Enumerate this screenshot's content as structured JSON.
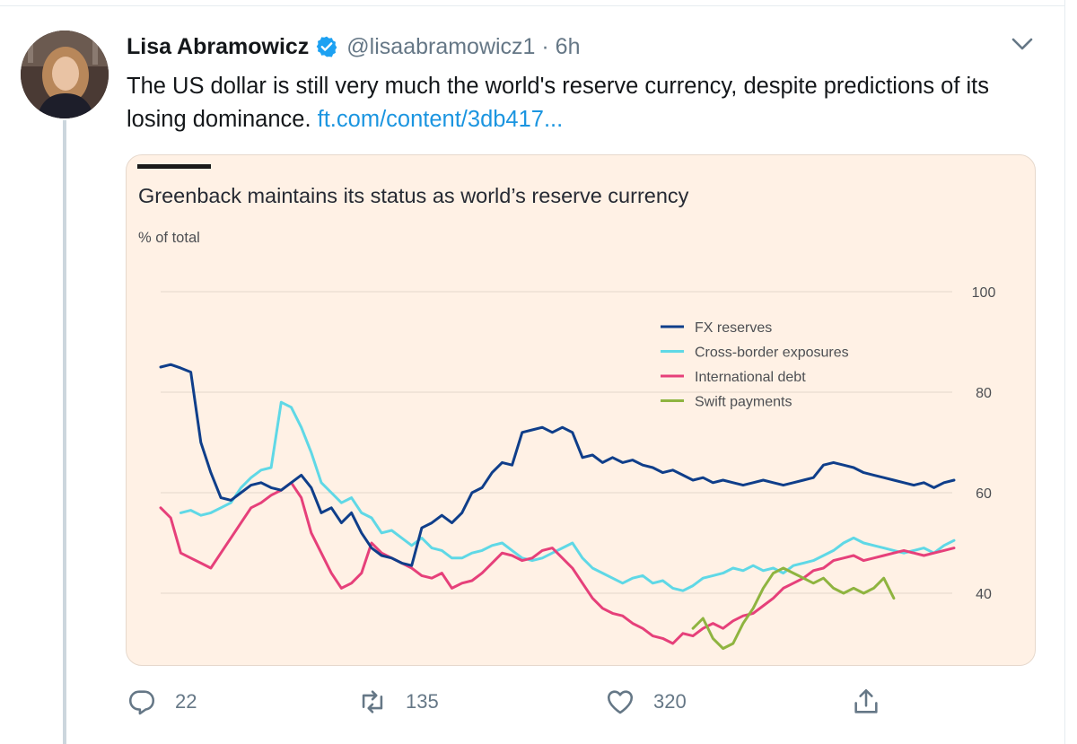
{
  "tweet": {
    "author_name": "Lisa Abramowicz",
    "handle_time": "@lisaabramowicz1 · 6h",
    "text": "The US dollar is still very much the world's reserve currency, despite predictions of its losing dominance. ",
    "link_text": "ft.com/content/3db417..."
  },
  "icons": {
    "avatar": "avatar-photo",
    "verified": "verified-badge-icon",
    "menu": "chevron-down-icon",
    "reply": "reply-icon",
    "retweet": "retweet-icon",
    "like": "heart-icon",
    "share": "share-icon"
  },
  "actions": {
    "reply_count": "22",
    "retweet_count": "135",
    "like_count": "320"
  },
  "colors": {
    "verified": "#1da1f2",
    "link": "#1b95e0",
    "card_bg": "#fff1e5"
  },
  "chart_data": {
    "type": "line",
    "title": "Greenback maintains its status as world’s reserve currency",
    "ylabel": "% of total",
    "ylim": [
      30,
      100
    ],
    "yticks": [
      40,
      60,
      80,
      100
    ],
    "legend": "top-right",
    "grid": true,
    "series": [
      {
        "name": "FX reserves",
        "color": "#0f3e8a",
        "x": [
          0,
          1,
          2,
          3,
          4,
          5,
          6,
          7,
          8,
          9,
          10,
          11,
          12,
          13,
          14,
          15,
          16,
          17,
          18,
          19,
          20,
          21,
          22,
          23,
          24,
          25,
          26,
          27,
          28,
          29,
          30,
          31,
          32,
          33,
          34,
          35,
          36,
          37,
          38,
          39,
          40,
          41,
          42,
          43,
          44,
          45,
          46,
          47,
          48,
          49,
          50,
          51,
          52,
          53,
          54,
          55,
          56,
          57,
          58,
          59,
          60,
          61,
          62,
          63,
          64,
          65,
          66,
          67,
          68,
          69,
          70,
          71,
          72,
          73,
          74,
          75,
          76,
          77,
          78,
          79
        ],
        "values": [
          85,
          85.5,
          84.8,
          84,
          70,
          64,
          59,
          58.5,
          60,
          61.5,
          62,
          61,
          60.5,
          62,
          63.5,
          61,
          56,
          57,
          54,
          56,
          52,
          49,
          47.5,
          47,
          46,
          45.5,
          53,
          54,
          55.5,
          54,
          56,
          60,
          61,
          64,
          66,
          65.5,
          72,
          72.5,
          73,
          72,
          73,
          72,
          67,
          67.5,
          66,
          67,
          66,
          66.5,
          65.5,
          65,
          64,
          64.5,
          63.5,
          62.5,
          63,
          62,
          62.5,
          62,
          61.5,
          62,
          62.5,
          62,
          61.5,
          62,
          62.5,
          63,
          65.5,
          66,
          65.5,
          65,
          64,
          63.5,
          63,
          62.5,
          62,
          61.5,
          62,
          61,
          62,
          62.5
        ]
      },
      {
        "name": "Cross-border exposures",
        "color": "#5fd8e6",
        "x": [
          2,
          3,
          4,
          5,
          6,
          7,
          8,
          9,
          10,
          11,
          12,
          13,
          14,
          15,
          16,
          17,
          18,
          19,
          20,
          21,
          22,
          23,
          24,
          25,
          26,
          27,
          28,
          29,
          30,
          31,
          32,
          33,
          34,
          35,
          36,
          37,
          38,
          39,
          40,
          41,
          42,
          43,
          44,
          45,
          46,
          47,
          48,
          49,
          50,
          51,
          52,
          53,
          54,
          55,
          56,
          57,
          58,
          59,
          60,
          61,
          62,
          63,
          64,
          65,
          66,
          67,
          68,
          69,
          70,
          71,
          72,
          73,
          74,
          75,
          76,
          77,
          78,
          79
        ],
        "values": [
          56,
          56.5,
          55.5,
          56,
          57,
          58,
          61,
          63,
          64.5,
          65,
          78,
          77,
          73,
          68,
          62,
          60,
          58,
          59,
          56,
          55,
          52,
          52.5,
          51,
          49.5,
          51,
          49,
          48.5,
          47,
          47,
          48,
          48.5,
          49.5,
          50,
          48.5,
          47,
          46.5,
          47,
          48,
          49,
          50,
          47,
          45,
          44,
          43,
          42,
          43,
          43.5,
          42,
          42.5,
          41,
          40.5,
          41.5,
          43,
          43.5,
          44,
          45,
          44.5,
          45.5,
          44.5,
          45,
          44,
          45.5,
          46,
          46.5,
          47.5,
          48.5,
          50,
          51,
          50,
          49.5,
          49,
          48.5,
          48,
          48.5,
          49,
          48,
          49.5,
          50.5
        ]
      },
      {
        "name": "International debt",
        "color": "#e6407a",
        "x": [
          0,
          1,
          2,
          3,
          4,
          5,
          6,
          7,
          8,
          9,
          10,
          11,
          12,
          13,
          14,
          15,
          16,
          17,
          18,
          19,
          20,
          21,
          22,
          23,
          24,
          25,
          26,
          27,
          28,
          29,
          30,
          31,
          32,
          33,
          34,
          35,
          36,
          37,
          38,
          39,
          40,
          41,
          42,
          43,
          44,
          45,
          46,
          47,
          48,
          49,
          50,
          51,
          52,
          53,
          54,
          55,
          56,
          57,
          58,
          59,
          60,
          61,
          62,
          63,
          64,
          65,
          66,
          67,
          68,
          69,
          70,
          71,
          72,
          73,
          74,
          75,
          76,
          77,
          78,
          79
        ],
        "values": [
          57,
          55,
          48,
          47,
          46,
          45,
          48,
          51,
          54,
          57,
          58,
          59.5,
          60.5,
          62,
          59,
          52,
          48,
          44,
          41,
          42,
          44,
          50,
          48,
          47,
          46,
          45,
          43.5,
          43,
          44,
          41,
          42,
          42.5,
          44,
          46,
          48,
          47.5,
          46.5,
          47,
          48.5,
          49,
          47,
          45,
          42,
          39,
          37,
          36,
          35.5,
          34,
          33,
          31.5,
          31,
          30,
          32,
          31.5,
          33,
          34,
          33,
          34.5,
          35.5,
          36,
          37.5,
          39,
          41,
          42,
          43,
          44.5,
          45,
          46.5,
          47,
          47.5,
          46.5,
          47,
          47.5,
          48,
          48.5,
          48,
          47.5,
          48,
          48.5,
          49
        ]
      },
      {
        "name": "Swift payments",
        "color": "#8fb440",
        "x": [
          53,
          54,
          55,
          56,
          57,
          58,
          59,
          60,
          61,
          62,
          63,
          64,
          65,
          66,
          67,
          68,
          69,
          70,
          71,
          72,
          73
        ],
        "values": [
          33,
          35,
          31,
          29,
          30,
          34,
          37,
          41,
          44,
          45,
          44,
          43,
          42,
          43,
          41,
          40,
          41,
          40,
          41,
          43,
          39
        ]
      }
    ]
  }
}
